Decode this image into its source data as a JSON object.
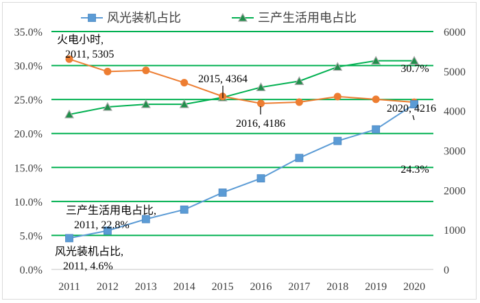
{
  "chart_data": {
    "type": "line",
    "categories": [
      "2011",
      "2012",
      "2013",
      "2014",
      "2015",
      "2016",
      "2017",
      "2018",
      "2019",
      "2020"
    ],
    "y_left": {
      "ticks": [
        "0.0%",
        "5.0%",
        "10.0%",
        "15.0%",
        "20.0%",
        "25.0%",
        "30.0%",
        "35.0%"
      ],
      "range": [
        0,
        35
      ],
      "unit": "%"
    },
    "y_right": {
      "ticks": [
        "0",
        "1000",
        "2000",
        "3000",
        "4000",
        "5000",
        "6000"
      ],
      "range": [
        0,
        6000
      ]
    },
    "grid": true,
    "legend_position": "top",
    "series": [
      {
        "name": "风光装机占比",
        "axis": "left",
        "color": "#5b9bd5",
        "marker": "square",
        "values": [
          4.6,
          5.7,
          7.4,
          8.8,
          11.3,
          13.4,
          16.4,
          18.9,
          20.6,
          24.3
        ]
      },
      {
        "name": "三产生活用电占比",
        "axis": "left",
        "color": "#00b050",
        "marker": "triangle",
        "values": [
          22.8,
          23.9,
          24.3,
          24.3,
          25.3,
          26.8,
          27.7,
          29.8,
          30.7,
          30.7
        ]
      },
      {
        "axis": "right",
        "color": "#ed7d31",
        "marker": "circle",
        "values": [
          5305,
          4990,
          5020,
          4710,
          4364,
          4186,
          4220,
          4360,
          4290,
          4216
        ]
      }
    ],
    "annotations": [
      {
        "lines": [
          "火电小时,",
          "2011, 5305"
        ]
      },
      {
        "lines": [
          "2015, 4364"
        ]
      },
      {
        "lines": [
          "2016, 4186"
        ]
      },
      {
        "lines": [
          "2020, 4216"
        ]
      },
      {
        "lines": [
          "30.7%"
        ]
      },
      {
        "lines": [
          "24.3%"
        ]
      },
      {
        "lines": [
          "三产生活用电占比,",
          "2011, 22.8%"
        ]
      },
      {
        "lines": [
          "风光装机占比,",
          "2011, 4.6%"
        ]
      }
    ]
  }
}
